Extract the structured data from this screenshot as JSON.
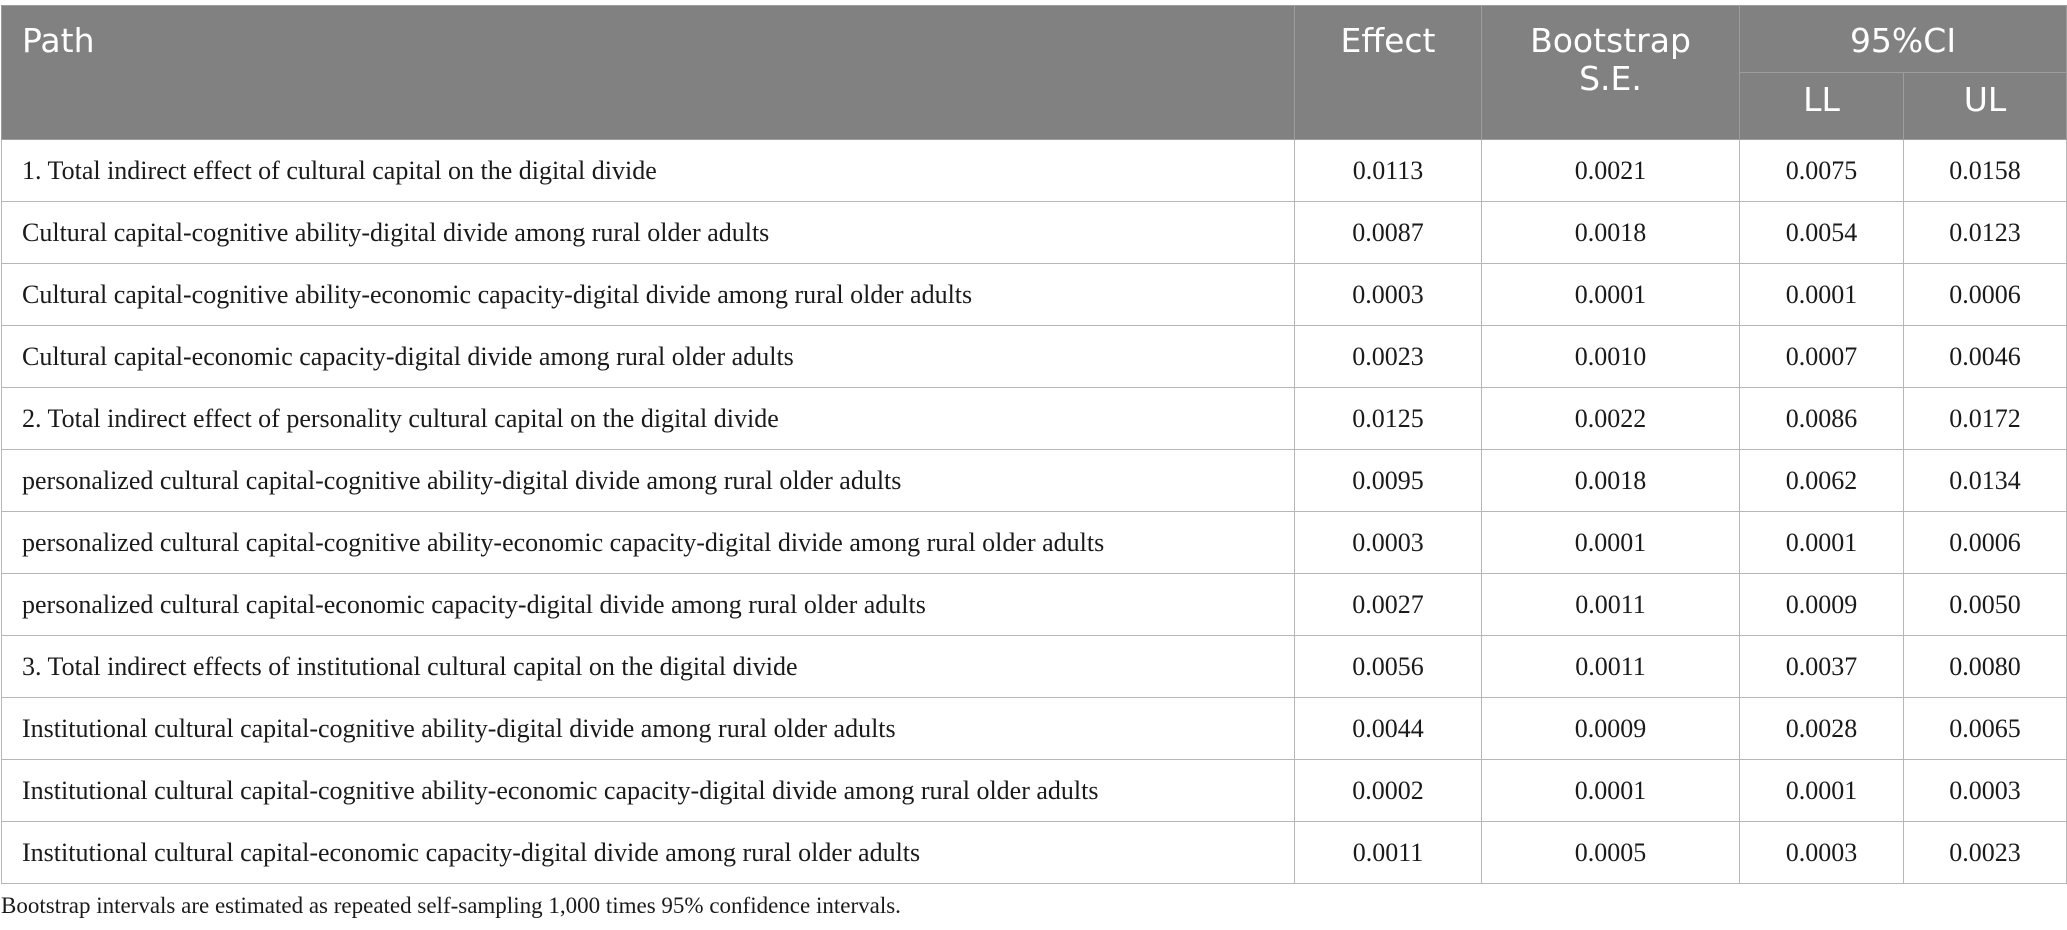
{
  "header": {
    "path": "Path",
    "effect": "Effect",
    "se_line1": "Bootstrap",
    "se_line2": "S.E.",
    "ci": "95%CI",
    "ll": "LL",
    "ul": "UL"
  },
  "rows": [
    {
      "path": "1. Total indirect effect of cultural capital on the digital divide",
      "effect": "0.0113",
      "se": "0.0021",
      "ll": "0.0075",
      "ul": "0.0158"
    },
    {
      "path": "Cultural capital-cognitive ability-digital divide among rural older adults",
      "effect": "0.0087",
      "se": "0.0018",
      "ll": "0.0054",
      "ul": "0.0123"
    },
    {
      "path": "Cultural capital-cognitive ability-economic capacity-digital divide among rural older adults",
      "effect": "0.0003",
      "se": "0.0001",
      "ll": "0.0001",
      "ul": "0.0006"
    },
    {
      "path": "Cultural capital-economic capacity-digital divide among rural older adults",
      "effect": "0.0023",
      "se": "0.0010",
      "ll": "0.0007",
      "ul": "0.0046"
    },
    {
      "path": "2. Total indirect effect of personality cultural capital on the digital divide",
      "effect": "0.0125",
      "se": "0.0022",
      "ll": "0.0086",
      "ul": "0.0172"
    },
    {
      "path": "personalized cultural capital-cognitive ability-digital divide among rural older adults",
      "effect": "0.0095",
      "se": "0.0018",
      "ll": "0.0062",
      "ul": "0.0134"
    },
    {
      "path": "personalized cultural capital-cognitive ability-economic capacity-digital divide among rural older adults",
      "effect": "0.0003",
      "se": "0.0001",
      "ll": "0.0001",
      "ul": "0.0006"
    },
    {
      "path": "personalized cultural capital-economic capacity-digital divide among rural older adults",
      "effect": "0.0027",
      "se": "0.0011",
      "ll": "0.0009",
      "ul": "0.0050"
    },
    {
      "path": "3. Total indirect effects of institutional cultural capital on the digital divide",
      "effect": "0.0056",
      "se": "0.0011",
      "ll": "0.0037",
      "ul": "0.0080"
    },
    {
      "path": "Institutional cultural capital-cognitive ability-digital divide among rural older adults",
      "effect": "0.0044",
      "se": "0.0009",
      "ll": "0.0028",
      "ul": "0.0065"
    },
    {
      "path": "Institutional cultural capital-cognitive ability-economic capacity-digital divide among rural older adults",
      "effect": "0.0002",
      "se": "0.0001",
      "ll": "0.0001",
      "ul": "0.0003"
    },
    {
      "path": "Institutional cultural capital-economic capacity-digital divide among rural older adults",
      "effect": "0.0011",
      "se": "0.0005",
      "ll": "0.0003",
      "ul": "0.0023"
    }
  ],
  "note": "Bootstrap intervals are estimated as repeated self-sampling 1,000 times 95% confidence intervals.",
  "colors": {
    "header_bg": "#808180",
    "header_text": "#ffffff",
    "grid": "#b7b7b7"
  }
}
